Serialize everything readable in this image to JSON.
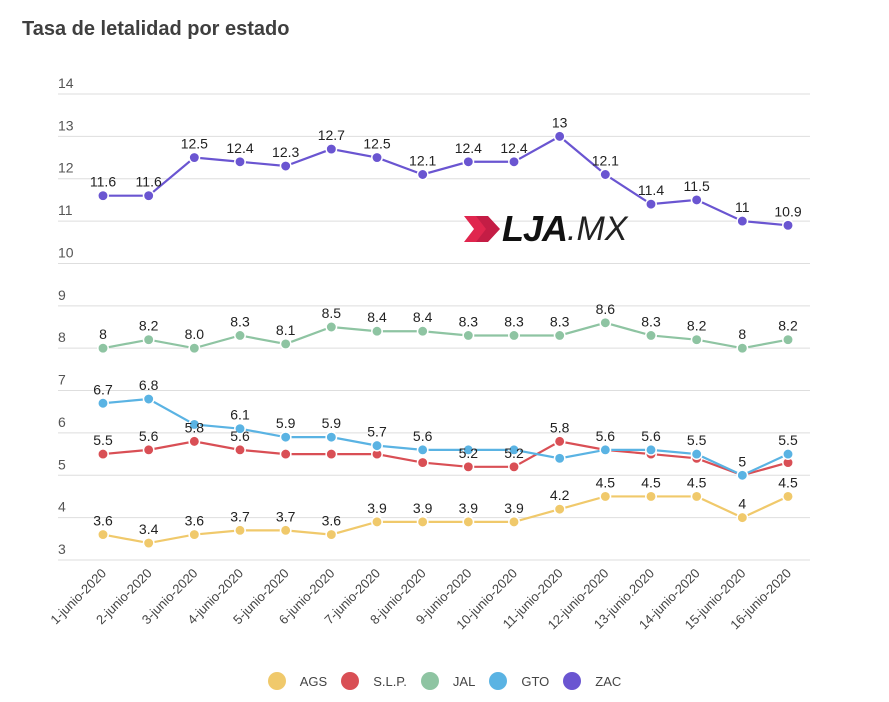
{
  "chart_data": {
    "type": "line",
    "title": "Tasa de letalidad por estado",
    "xlabel": "",
    "ylabel": "",
    "ylim": [
      3,
      14
    ],
    "yticks": [
      3,
      4,
      5,
      6,
      7,
      8,
      9,
      10,
      11,
      12,
      13,
      14
    ],
    "grid": true,
    "legend_position": "bottom",
    "categories": [
      "1-junio-2020",
      "2-junio-2020",
      "3-junio-2020",
      "4-junio-2020",
      "5-junio-2020",
      "6-junio-2020",
      "7-junio-2020",
      "8-junio-2020",
      "9-junio-2020",
      "10-junio-2020",
      "11-junio-2020",
      "12-junio-2020",
      "13-junio.2020",
      "14-junio-2020",
      "15-junio-2020",
      "16-junio-2020"
    ],
    "series": [
      {
        "name": "AGS",
        "color": "#f0c96b",
        "values": [
          3.6,
          3.4,
          3.6,
          3.7,
          3.7,
          3.6,
          3.9,
          3.9,
          3.9,
          3.9,
          4.2,
          4.5,
          4.5,
          4.5,
          4.0,
          4.5
        ],
        "labels": [
          "3.6",
          "3.4",
          "3.6",
          "3.7",
          "3.7",
          "3.6",
          "3.9",
          "3.9",
          "3.9",
          "3.9",
          "4.2",
          "4.5",
          "4.5",
          "4.5",
          "4",
          "4.5"
        ]
      },
      {
        "name": "S.L.P.",
        "color": "#d94f55",
        "values": [
          5.5,
          5.6,
          5.8,
          5.6,
          5.5,
          5.5,
          5.5,
          5.3,
          5.2,
          5.2,
          5.8,
          5.6,
          5.5,
          5.4,
          5.0,
          5.3
        ],
        "labels": [
          "5.5",
          "5.6",
          "5.8",
          "5.6",
          "",
          "",
          "",
          "",
          "5.2",
          "5.2",
          "5.8",
          "",
          "",
          "",
          "",
          ""
        ]
      },
      {
        "name": "JAL",
        "color": "#8ec4a2",
        "values": [
          8.0,
          8.2,
          8.0,
          8.3,
          8.1,
          8.5,
          8.4,
          8.4,
          8.3,
          8.3,
          8.3,
          8.6,
          8.3,
          8.2,
          8.0,
          8.2
        ],
        "labels": [
          "8",
          "8.2",
          "8.0",
          "8.3",
          "8.1",
          "8.5",
          "8.4",
          "8.4",
          "8.3",
          "8.3",
          "8.3",
          "8.6",
          "8.3",
          "8.2",
          "8",
          "8.2"
        ]
      },
      {
        "name": "GTO",
        "color": "#5ab3e3",
        "values": [
          6.7,
          6.8,
          6.2,
          6.1,
          5.9,
          5.9,
          5.7,
          5.6,
          5.6,
          5.6,
          5.4,
          5.6,
          5.6,
          5.5,
          5.0,
          5.5
        ],
        "labels": [
          "6.7",
          "6.8",
          "",
          "6.1",
          "5.9",
          "5.9",
          "5.7",
          "5.6",
          "",
          "",
          "",
          "5.6",
          "5.6",
          "5.5",
          "5",
          "5.5"
        ]
      },
      {
        "name": "ZAC",
        "color": "#6a55d1",
        "values": [
          11.6,
          11.6,
          12.5,
          12.4,
          12.3,
          12.7,
          12.5,
          12.1,
          12.4,
          12.4,
          13.0,
          12.1,
          11.4,
          11.5,
          11.0,
          10.9
        ],
        "labels": [
          "11.6",
          "11.6",
          "12.5",
          "12.4",
          "12.3",
          "12.7",
          "12.5",
          "12.1",
          "12.4",
          "12.4",
          "13",
          "12.1",
          "11.4",
          "11.5",
          "11",
          "10.9"
        ]
      }
    ]
  },
  "watermark": {
    "bold": "LJA",
    "thin": ".MX",
    "color": "#e0264e"
  }
}
